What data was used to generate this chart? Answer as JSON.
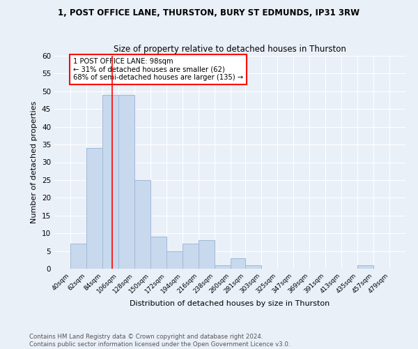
{
  "title": "1, POST OFFICE LANE, THURSTON, BURY ST EDMUNDS, IP31 3RW",
  "subtitle": "Size of property relative to detached houses in Thurston",
  "xlabel": "Distribution of detached houses by size in Thurston",
  "ylabel": "Number of detached properties",
  "bin_edges": [
    40,
    62,
    84,
    106,
    128,
    150,
    172,
    194,
    216,
    238,
    260,
    281,
    303,
    325,
    347,
    369,
    391,
    413,
    435,
    457,
    479
  ],
  "bin_labels": [
    "40sqm",
    "62sqm",
    "84sqm",
    "106sqm",
    "128sqm",
    "150sqm",
    "172sqm",
    "194sqm",
    "216sqm",
    "238sqm",
    "260sqm",
    "281sqm",
    "303sqm",
    "325sqm",
    "347sqm",
    "369sqm",
    "391sqm",
    "413sqm",
    "435sqm",
    "457sqm",
    "479sqm"
  ],
  "counts": [
    7,
    34,
    49,
    49,
    25,
    9,
    5,
    7,
    8,
    1,
    3,
    1,
    0,
    0,
    0,
    0,
    0,
    0,
    1,
    0
  ],
  "bar_color": "#c8d9ed",
  "bar_edge_color": "#a0b8d8",
  "red_line_x": 98,
  "annotation_text": "1 POST OFFICE LANE: 98sqm\n← 31% of detached houses are smaller (62)\n68% of semi-detached houses are larger (135) →",
  "annotation_box_color": "white",
  "annotation_box_edge": "red",
  "ylim": [
    0,
    60
  ],
  "yticks": [
    0,
    5,
    10,
    15,
    20,
    25,
    30,
    35,
    40,
    45,
    50,
    55,
    60
  ],
  "footer": "Contains HM Land Registry data © Crown copyright and database right 2024.\nContains public sector information licensed under the Open Government Licence v3.0.",
  "bg_color": "#eaf0f8",
  "grid_color": "white"
}
